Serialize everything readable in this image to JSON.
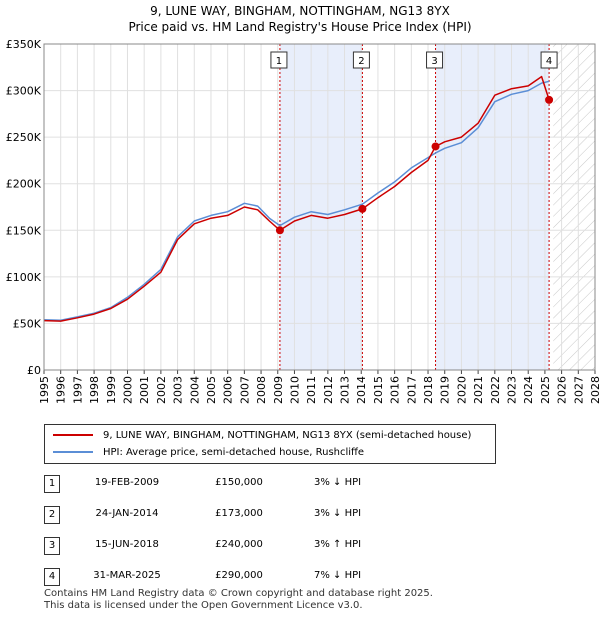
{
  "title_line1": "9, LUNE WAY, BINGHAM, NOTTINGHAM, NG13 8YX",
  "title_line2": "Price paid vs. HM Land Registry's House Price Index (HPI)",
  "colors": {
    "property": "#cc0000",
    "hpi": "#5b8ed6",
    "shade": "#e8eefb",
    "vline": "#cc0000"
  },
  "chart_data": {
    "type": "line",
    "x_start": 1995,
    "x_end": 2028,
    "ylim": [
      0,
      350000
    ],
    "yticks": [
      0,
      50000,
      100000,
      150000,
      200000,
      250000,
      300000,
      350000
    ],
    "ytick_labels": [
      "£0",
      "£50K",
      "£100K",
      "£150K",
      "£200K",
      "£250K",
      "£300K",
      "£350K"
    ],
    "xticks": [
      "1995",
      "1996",
      "1997",
      "1998",
      "1999",
      "2000",
      "2001",
      "2002",
      "2003",
      "2004",
      "2005",
      "2006",
      "2007",
      "2008",
      "2009",
      "2010",
      "2011",
      "2012",
      "2013",
      "2014",
      "2015",
      "2016",
      "2017",
      "2018",
      "2019",
      "2020",
      "2021",
      "2022",
      "2023",
      "2024",
      "2025",
      "2026",
      "2027",
      "2028"
    ],
    "future_from": 2025.5,
    "shaded_ranges": [
      [
        2009.13,
        2014.07
      ],
      [
        2018.45,
        2025.25
      ]
    ],
    "series": [
      {
        "name": "9, LUNE WAY, BINGHAM, NOTTINGHAM, NG13 8YX (semi-detached house)",
        "color": "#cc0000",
        "points": [
          [
            1995.0,
            53000
          ],
          [
            1996.0,
            52500
          ],
          [
            1997.0,
            56000
          ],
          [
            1998.0,
            60000
          ],
          [
            1999.0,
            66000
          ],
          [
            2000.0,
            76000
          ],
          [
            2001.0,
            90000
          ],
          [
            2002.0,
            105000
          ],
          [
            2003.0,
            140000
          ],
          [
            2004.0,
            157000
          ],
          [
            2005.0,
            163000
          ],
          [
            2006.0,
            166000
          ],
          [
            2007.0,
            175000
          ],
          [
            2007.8,
            172000
          ],
          [
            2008.5,
            160000
          ],
          [
            2009.13,
            150000
          ],
          [
            2010.0,
            160000
          ],
          [
            2011.0,
            166000
          ],
          [
            2012.0,
            163000
          ],
          [
            2013.0,
            167000
          ],
          [
            2014.07,
            173000
          ],
          [
            2015.0,
            185000
          ],
          [
            2016.0,
            197000
          ],
          [
            2017.0,
            212000
          ],
          [
            2018.0,
            225000
          ],
          [
            2018.45,
            240000
          ],
          [
            2019.0,
            245000
          ],
          [
            2020.0,
            250000
          ],
          [
            2021.0,
            265000
          ],
          [
            2022.0,
            295000
          ],
          [
            2023.0,
            302000
          ],
          [
            2024.0,
            305000
          ],
          [
            2024.8,
            315000
          ],
          [
            2025.25,
            290000
          ]
        ]
      },
      {
        "name": "HPI: Average price, semi-detached house, Rushcliffe",
        "color": "#5b8ed6",
        "points": [
          [
            1995.0,
            54000
          ],
          [
            1996.0,
            53500
          ],
          [
            1997.0,
            57000
          ],
          [
            1998.0,
            61000
          ],
          [
            1999.0,
            67000
          ],
          [
            2000.0,
            78000
          ],
          [
            2001.0,
            92000
          ],
          [
            2002.0,
            108000
          ],
          [
            2003.0,
            143000
          ],
          [
            2004.0,
            160000
          ],
          [
            2005.0,
            166000
          ],
          [
            2006.0,
            170000
          ],
          [
            2007.0,
            179000
          ],
          [
            2007.8,
            176000
          ],
          [
            2008.5,
            163000
          ],
          [
            2009.13,
            155000
          ],
          [
            2010.0,
            164000
          ],
          [
            2011.0,
            170000
          ],
          [
            2012.0,
            167000
          ],
          [
            2013.0,
            172000
          ],
          [
            2014.07,
            178000
          ],
          [
            2015.0,
            190000
          ],
          [
            2016.0,
            202000
          ],
          [
            2017.0,
            217000
          ],
          [
            2018.0,
            228000
          ],
          [
            2018.45,
            233000
          ],
          [
            2019.0,
            238000
          ],
          [
            2020.0,
            244000
          ],
          [
            2021.0,
            260000
          ],
          [
            2022.0,
            288000
          ],
          [
            2023.0,
            296000
          ],
          [
            2024.0,
            300000
          ],
          [
            2024.8,
            308000
          ],
          [
            2025.25,
            310000
          ]
        ]
      }
    ],
    "markers": [
      {
        "label": "1",
        "x": 2009.13,
        "y": 150000
      },
      {
        "label": "2",
        "x": 2014.07,
        "y": 173000
      },
      {
        "label": "3",
        "x": 2018.45,
        "y": 240000
      },
      {
        "label": "4",
        "x": 2025.25,
        "y": 290000
      }
    ]
  },
  "legend": {
    "property": "9, LUNE WAY, BINGHAM, NOTTINGHAM, NG13 8YX (semi-detached house)",
    "hpi": "HPI: Average price, semi-detached house, Rushcliffe"
  },
  "sales": [
    {
      "num": "1",
      "date": "19-FEB-2009",
      "price": "£150,000",
      "hpi": "3% ↓ HPI"
    },
    {
      "num": "2",
      "date": "24-JAN-2014",
      "price": "£173,000",
      "hpi": "3% ↓ HPI"
    },
    {
      "num": "3",
      "date": "15-JUN-2018",
      "price": "£240,000",
      "hpi": "3% ↑ HPI"
    },
    {
      "num": "4",
      "date": "31-MAR-2025",
      "price": "£290,000",
      "hpi": "7% ↓ HPI"
    }
  ],
  "footer_line1": "Contains HM Land Registry data © Crown copyright and database right 2025.",
  "footer_line2": "This data is licensed under the Open Government Licence v3.0."
}
